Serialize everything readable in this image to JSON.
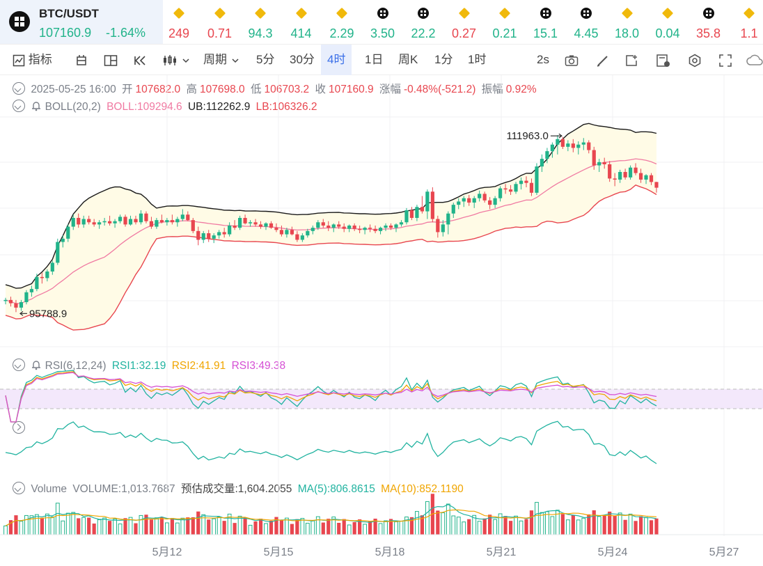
{
  "ticker": {
    "pair": "BTC/USDT",
    "last_price": "107160.9",
    "change_pct": "-1.64%",
    "others": [
      {
        "icon": "bnb-icon",
        "value": "249",
        "dir": "dn"
      },
      {
        "icon": "bnb-icon",
        "value": "0.71",
        "dir": "dn"
      },
      {
        "icon": "bnb-icon",
        "value": "94.3",
        "dir": "up"
      },
      {
        "icon": "bnb-icon",
        "value": "414",
        "dir": "up"
      },
      {
        "icon": "bnb-icon",
        "value": "2.29",
        "dir": "up"
      },
      {
        "icon": "okx-icon",
        "value": "3.50",
        "dir": "up"
      },
      {
        "icon": "okx-icon",
        "value": "22.2",
        "dir": "up"
      },
      {
        "icon": "bnb-icon",
        "value": "0.27",
        "dir": "dn"
      },
      {
        "icon": "bnb-icon",
        "value": "0.21",
        "dir": "up"
      },
      {
        "icon": "okx-icon",
        "value": "15.1",
        "dir": "up"
      },
      {
        "icon": "okx-icon",
        "value": "4.45",
        "dir": "up"
      },
      {
        "icon": "bnb-icon",
        "value": "18.0",
        "dir": "up"
      },
      {
        "icon": "bnb-icon",
        "value": "0.04",
        "dir": "up"
      },
      {
        "icon": "okx-icon",
        "value": "35.8",
        "dir": "dn"
      },
      {
        "icon": "bnb-icon",
        "value": "1.1",
        "dir": "dn"
      }
    ]
  },
  "toolbar": {
    "indicators": "指标",
    "period": "周期",
    "intervals": [
      "5分",
      "30分",
      "4时",
      "1日",
      "周K",
      "1分",
      "1时"
    ],
    "active_interval": "4时",
    "refresh": "2s"
  },
  "ohlc_info": {
    "datetime": "2025-05-25 16:00",
    "open_label": "开",
    "open": "107682.0",
    "high_label": "高",
    "high": "107698.0",
    "low_label": "低",
    "low": "106703.2",
    "close_label": "收",
    "close": "107160.9",
    "change_label": "涨幅",
    "change": "-0.48%(-521.2)",
    "amp_label": "振幅",
    "amp": "0.92%"
  },
  "boll_info": {
    "name": "BOLL(20,2)",
    "boll": "BOLL:109294.6",
    "ub": "UB:112262.9",
    "lb": "LB:106326.2"
  },
  "rsi_info": {
    "name": "RSI(6,12,24)",
    "rsi1": "RSI1:32.19",
    "rsi2": "RSI2:41.91",
    "rsi3": "RSI3:49.38"
  },
  "volume_info": {
    "name": "Volume",
    "volume": "VOLUME:1,013.7687",
    "estimate": "预估成交量:1,604.2055",
    "ma5": "MA(5):806.8615",
    "ma10": "MA(10):852.1190"
  },
  "colors": {
    "up": "#21b38a",
    "down": "#e8464f",
    "boll_mid": "#f07aa2",
    "band_fill": "#fffbe6",
    "rsi1": "#21b3a0",
    "rsi2": "#f0a500",
    "rsi3": "#d54fd4",
    "ma5": "#21b3a0",
    "ma10": "#f0a500"
  },
  "chart_data": {
    "type": "candlestick",
    "interval": "4h",
    "x_ticks": [
      "5月12",
      "5月15",
      "5月18",
      "5月21",
      "5月24",
      "5月27"
    ],
    "annotations": [
      {
        "label": "111963.0",
        "type": "period-high"
      },
      {
        "label": "95788.9",
        "type": "period-low"
      }
    ],
    "ylim": [
      92500,
      113500
    ],
    "candles": [
      [
        96800,
        97100,
        96500,
        96900
      ],
      [
        96900,
        97200,
        96300,
        96600
      ],
      [
        96600,
        96900,
        95788.9,
        96200
      ],
      [
        96200,
        96900,
        95900,
        96700
      ],
      [
        96700,
        97800,
        96500,
        97600
      ],
      [
        97600,
        98200,
        97200,
        97900
      ],
      [
        97900,
        99300,
        97700,
        99000
      ],
      [
        99000,
        99400,
        98400,
        98900
      ],
      [
        98900,
        99700,
        98600,
        99500
      ],
      [
        99500,
        100500,
        99200,
        100300
      ],
      [
        100300,
        102500,
        100100,
        102200
      ],
      [
        102200,
        102800,
        101700,
        102500
      ],
      [
        102500,
        103800,
        102200,
        103600
      ],
      [
        103600,
        104700,
        103300,
        104400
      ],
      [
        104400,
        104800,
        103500,
        103800
      ],
      [
        103800,
        104600,
        103500,
        104300
      ],
      [
        104300,
        104600,
        103800,
        104000
      ],
      [
        104000,
        104300,
        103600,
        103800
      ],
      [
        103800,
        104200,
        103400,
        104000
      ],
      [
        104000,
        104400,
        103700,
        104100
      ],
      [
        104100,
        104600,
        103700,
        103900
      ],
      [
        103900,
        104300,
        103500,
        104100
      ],
      [
        104100,
        104700,
        103900,
        104500
      ],
      [
        104500,
        104700,
        103600,
        103800
      ],
      [
        103800,
        104600,
        103700,
        104300
      ],
      [
        104300,
        104600,
        103800,
        104000
      ],
      [
        104000,
        105100,
        103800,
        104800
      ],
      [
        104800,
        105000,
        103900,
        104100
      ],
      [
        104100,
        104500,
        103400,
        103600
      ],
      [
        103600,
        104400,
        103400,
        104200
      ],
      [
        104200,
        104700,
        103900,
        104000
      ],
      [
        104000,
        104400,
        103700,
        104200
      ],
      [
        104200,
        104700,
        103800,
        104000
      ],
      [
        104000,
        104500,
        103600,
        104300
      ],
      [
        104300,
        105200,
        104100,
        104700
      ],
      [
        104700,
        105000,
        104100,
        104200
      ],
      [
        104200,
        104400,
        103000,
        103200
      ],
      [
        103200,
        103600,
        101900,
        102400
      ],
      [
        102400,
        103200,
        102100,
        103000
      ],
      [
        103000,
        103300,
        102200,
        102500
      ],
      [
        102500,
        103000,
        102100,
        102800
      ],
      [
        102800,
        103300,
        102500,
        103100
      ],
      [
        103100,
        103500,
        102600,
        102900
      ],
      [
        102900,
        104000,
        102700,
        103700
      ],
      [
        103700,
        104200,
        103300,
        103500
      ],
      [
        103500,
        104600,
        103300,
        104400
      ],
      [
        104400,
        104700,
        103800,
        103900
      ],
      [
        103900,
        104200,
        103600,
        104000
      ],
      [
        104000,
        104300,
        103600,
        103800
      ],
      [
        103800,
        104100,
        103400,
        103600
      ],
      [
        103600,
        104000,
        103300,
        103900
      ],
      [
        103900,
        104100,
        103400,
        103500
      ],
      [
        103500,
        103900,
        103100,
        103300
      ],
      [
        103300,
        103700,
        102700,
        102900
      ],
      [
        102900,
        103500,
        102600,
        103300
      ],
      [
        103300,
        103600,
        102800,
        102900
      ],
      [
        102900,
        103200,
        102200,
        102400
      ],
      [
        102400,
        103000,
        102200,
        102800
      ],
      [
        102800,
        103400,
        102600,
        103200
      ],
      [
        103200,
        103700,
        102900,
        103500
      ],
      [
        103500,
        104200,
        103300,
        104000
      ],
      [
        104000,
        104300,
        103500,
        103700
      ],
      [
        103700,
        104100,
        103200,
        103500
      ],
      [
        103500,
        103900,
        103100,
        103800
      ],
      [
        103800,
        104100,
        103400,
        103600
      ],
      [
        103600,
        103900,
        103100,
        103400
      ],
      [
        103400,
        103800,
        103100,
        103700
      ],
      [
        103700,
        103900,
        103200,
        103400
      ],
      [
        103400,
        103700,
        103000,
        103300
      ],
      [
        103300,
        103600,
        102900,
        103500
      ],
      [
        103500,
        103800,
        103100,
        103400
      ],
      [
        103400,
        103700,
        103000,
        103200
      ],
      [
        103200,
        103600,
        102900,
        103500
      ],
      [
        103500,
        103900,
        103200,
        103700
      ],
      [
        103700,
        103900,
        103300,
        103500
      ],
      [
        103500,
        103900,
        103100,
        103800
      ],
      [
        103800,
        104200,
        103600,
        104000
      ],
      [
        104000,
        105300,
        103800,
        105100
      ],
      [
        105100,
        105400,
        104200,
        104400
      ],
      [
        104400,
        105600,
        104100,
        105400
      ],
      [
        105400,
        106400,
        104800,
        105000
      ],
      [
        105000,
        107000,
        104300,
        106800
      ],
      [
        106800,
        107200,
        104000,
        104300
      ],
      [
        104300,
        104600,
        102600,
        103100
      ],
      [
        103100,
        104200,
        102700,
        103800
      ],
      [
        103800,
        105000,
        102900,
        104800
      ],
      [
        104800,
        105800,
        104400,
        105600
      ],
      [
        105600,
        106200,
        105200,
        105900
      ],
      [
        105900,
        106400,
        105400,
        106200
      ],
      [
        106200,
        106500,
        105500,
        105800
      ],
      [
        105800,
        106400,
        105300,
        106200
      ],
      [
        106200,
        106900,
        105900,
        106600
      ],
      [
        106600,
        106800,
        105800,
        106000
      ],
      [
        106000,
        106300,
        105200,
        105600
      ],
      [
        105600,
        106400,
        105300,
        106200
      ],
      [
        106200,
        107300,
        105900,
        107100
      ],
      [
        107100,
        107500,
        106600,
        107000
      ],
      [
        107000,
        107400,
        106500,
        106800
      ],
      [
        106800,
        107700,
        106600,
        107500
      ],
      [
        107500,
        108100,
        107000,
        107800
      ],
      [
        107800,
        108200,
        107200,
        107600
      ],
      [
        107600,
        108000,
        106400,
        106700
      ],
      [
        106700,
        109400,
        106500,
        109100
      ],
      [
        109100,
        110200,
        108600,
        109800
      ],
      [
        109800,
        110800,
        109400,
        110500
      ],
      [
        110500,
        111300,
        109900,
        111100
      ],
      [
        111100,
        111963,
        110200,
        111600
      ],
      [
        111600,
        111800,
        110700,
        110900
      ],
      [
        110900,
        111500,
        110500,
        111200
      ],
      [
        111200,
        111600,
        110400,
        110800
      ],
      [
        110800,
        111400,
        110200,
        111100
      ],
      [
        111100,
        111700,
        110600,
        111300
      ],
      [
        111300,
        111500,
        110300,
        110600
      ],
      [
        110600,
        110900,
        108800,
        109200
      ],
      [
        109200,
        109800,
        108600,
        109500
      ],
      [
        109500,
        109900,
        108900,
        109300
      ],
      [
        109300,
        109600,
        107700,
        108000
      ],
      [
        108000,
        108500,
        107300,
        107900
      ],
      [
        107900,
        108800,
        107600,
        108600
      ],
      [
        108600,
        108900,
        107900,
        108100
      ],
      [
        108100,
        109200,
        107900,
        109000
      ],
      [
        109000,
        109400,
        108300,
        108500
      ],
      [
        108500,
        108900,
        107600,
        107900
      ],
      [
        107900,
        108400,
        107500,
        108300
      ],
      [
        108300,
        108500,
        107400,
        107682
      ],
      [
        107682,
        107698,
        106703.2,
        107160.9
      ]
    ]
  }
}
